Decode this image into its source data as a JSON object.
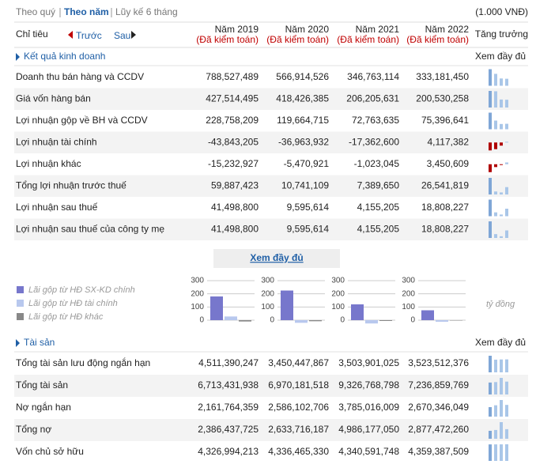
{
  "nav": {
    "tabs": [
      "Theo quý",
      "Theo năm",
      "Lũy kế 6 tháng"
    ],
    "unit": "(1.000 VNĐ)"
  },
  "header": {
    "label": "Chỉ tiêu",
    "prev": "Trước",
    "next": "Sau",
    "growth": "Tăng trưởng",
    "years": [
      {
        "year": "Năm 2019",
        "status": "(Đã kiểm toán)"
      },
      {
        "year": "Năm 2020",
        "status": "(Đã kiểm toán)"
      },
      {
        "year": "Năm 2021",
        "status": "(Đã kiểm toán)"
      },
      {
        "year": "Năm 2022",
        "status": "(Đã kiểm toán)"
      }
    ]
  },
  "sections": [
    {
      "title": "Kết quả kinh doanh",
      "more": "Xem đầy đủ",
      "rows": [
        {
          "label": "Doanh thu bán hàng và CCDV",
          "values": [
            {
              "value": 788527489,
              "label": "788,527,489"
            },
            {
              "value": 566914526,
              "label": "566,914,526"
            },
            {
              "value": 346763114,
              "label": "346,763,114"
            },
            {
              "value": 333181450,
              "label": "333,181,450"
            }
          ]
        },
        {
          "label": "Giá vốn hàng bán",
          "values": [
            {
              "value": 427514495,
              "label": "427,514,495"
            },
            {
              "value": 418426385,
              "label": "418,426,385"
            },
            {
              "value": 206205631,
              "label": "206,205,631"
            },
            {
              "value": 200530258,
              "label": "200,530,258"
            }
          ]
        },
        {
          "label": "Lợi nhuận gộp về BH và CCDV",
          "values": [
            {
              "value": 228758209,
              "label": "228,758,209"
            },
            {
              "value": 119664715,
              "label": "119,664,715"
            },
            {
              "value": 72763635,
              "label": "72,763,635"
            },
            {
              "value": 75396641,
              "label": "75,396,641"
            }
          ]
        },
        {
          "label": "Lợi nhuận tài chính",
          "values": [
            {
              "value": -43843205,
              "label": "-43,843,205"
            },
            {
              "value": -36963932,
              "label": "-36,963,932"
            },
            {
              "value": -17362600,
              "label": "-17,362,600"
            },
            {
              "value": 4117382,
              "label": "4,117,382"
            }
          ]
        },
        {
          "label": "Lợi nhuận khác",
          "values": [
            {
              "value": -15232927,
              "label": "-15,232,927"
            },
            {
              "value": -5470921,
              "label": "-5,470,921"
            },
            {
              "value": -1023045,
              "label": "-1,023,045"
            },
            {
              "value": 3450609,
              "label": "3,450,609"
            }
          ]
        },
        {
          "label": "Tổng lợi nhuận trước thuế",
          "values": [
            {
              "value": 59887423,
              "label": "59,887,423"
            },
            {
              "value": 10741109,
              "label": "10,741,109"
            },
            {
              "value": 7389650,
              "label": "7,389,650"
            },
            {
              "value": 26541819,
              "label": "26,541,819"
            }
          ]
        },
        {
          "label": "Lợi nhuận sau thuế",
          "values": [
            {
              "value": 41498800,
              "label": "41,498,800"
            },
            {
              "value": 9595614,
              "label": "9,595,614"
            },
            {
              "value": 4155205,
              "label": "4,155,205"
            },
            {
              "value": 18808227,
              "label": "18,808,227"
            }
          ]
        },
        {
          "label": "Lợi nhuận sau thuế của công ty mẹ",
          "values": [
            {
              "value": 41498800,
              "label": "41,498,800"
            },
            {
              "value": 9595614,
              "label": "9,595,614"
            },
            {
              "value": 4155205,
              "label": "4,155,205"
            },
            {
              "value": 18808227,
              "label": "18,808,227"
            }
          ]
        }
      ]
    },
    {
      "title": "Tài sản",
      "more": "Xem đầy đủ",
      "rows": [
        {
          "label": "Tổng tài sản lưu động ngắn hạn",
          "values": [
            {
              "value": 4511390247,
              "label": "4,511,390,247"
            },
            {
              "value": 3450447867,
              "label": "3,450,447,867"
            },
            {
              "value": 3503901025,
              "label": "3,503,901,025"
            },
            {
              "value": 3523512376,
              "label": "3,523,512,376"
            }
          ]
        },
        {
          "label": "Tổng tài sản",
          "values": [
            {
              "value": 6713431938,
              "label": "6,713,431,938"
            },
            {
              "value": 6970181518,
              "label": "6,970,181,518"
            },
            {
              "value": 9326768798,
              "label": "9,326,768,798"
            },
            {
              "value": 7236859769,
              "label": "7,236,859,769"
            }
          ]
        },
        {
          "label": "Nợ ngắn hạn",
          "values": [
            {
              "value": 2161764359,
              "label": "2,161,764,359"
            },
            {
              "value": 2586102706,
              "label": "2,586,102,706"
            },
            {
              "value": 3785016009,
              "label": "3,785,016,009"
            },
            {
              "value": 2670346049,
              "label": "2,670,346,049"
            }
          ]
        },
        {
          "label": "Tổng nợ",
          "values": [
            {
              "value": 2386437725,
              "label": "2,386,437,725"
            },
            {
              "value": 2633716187,
              "label": "2,633,716,187"
            },
            {
              "value": 4986177050,
              "label": "4,986,177,050"
            },
            {
              "value": 2877472260,
              "label": "2,877,472,260"
            }
          ]
        },
        {
          "label": "Vốn chủ sở hữu",
          "values": [
            {
              "value": 4326994213,
              "label": "4,326,994,213"
            },
            {
              "value": 4336465330,
              "label": "4,336,465,330"
            },
            {
              "value": 4340591748,
              "label": "4,340,591,748"
            },
            {
              "value": 4359387509,
              "label": "4,359,387,509"
            }
          ]
        }
      ]
    }
  ],
  "view_full": "Xem đầy đủ",
  "profit_chart": {
    "legend": [
      {
        "name": "Lãi gộp từ HĐ SX-KD chính",
        "color": "#7777cc"
      },
      {
        "name": "Lãi gộp từ HĐ tài chính",
        "color": "#b8c8ee"
      },
      {
        "name": "Lãi gộp từ HĐ khác",
        "color": "#888888"
      }
    ],
    "ylim": [
      -30,
      300
    ],
    "yticks": [
      0,
      100,
      200,
      300
    ],
    "unit": "tỷ đồng",
    "groups": [
      [
        180,
        28,
        -10
      ],
      [
        225,
        -20,
        -8
      ],
      [
        120,
        -25,
        -6
      ],
      [
        75,
        -12,
        -3
      ]
    ]
  }
}
